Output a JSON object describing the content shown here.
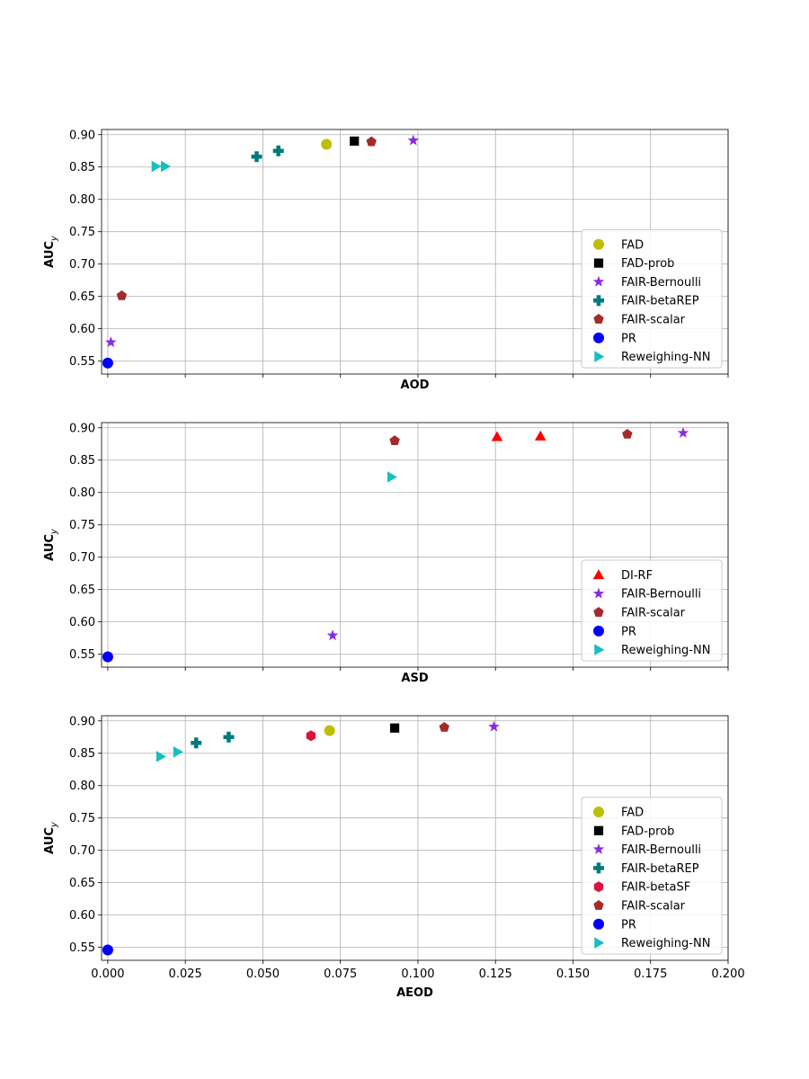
{
  "colors": {
    "FAD": "#bfbf00",
    "FAD-prob": "#000000",
    "FAIR-Bernoulli": "#8a2be2",
    "FAIR-betaREP": "#007b7b",
    "FAIR-betaSF": "#dc143c",
    "FAIR-scalar": "#a52a2a",
    "PR": "#0000ff",
    "Reweighing-NN": "#17bfbf",
    "DI-RF": "#ff0000"
  },
  "markers": {
    "FAD": "circle",
    "FAD-prob": "square",
    "FAIR-Bernoulli": "star",
    "FAIR-betaREP": "plus",
    "FAIR-betaSF": "hexagon",
    "FAIR-scalar": "pentagon",
    "PR": "circle",
    "Reweighing-NN": "triangle-right",
    "DI-RF": "triangle-up"
  },
  "chart_data": [
    {
      "type": "scatter",
      "xlabel": "AOD",
      "ylabel_main": "AUC",
      "ylabel_sub": "y",
      "xlim": [
        -0.002,
        0.2
      ],
      "ylim": [
        0.53,
        0.908
      ],
      "xticks": [
        0.0,
        0.025,
        0.05,
        0.075,
        0.1,
        0.125,
        0.15,
        0.175,
        0.2
      ],
      "xtick_labels_shown": false,
      "yticks": [
        "0.55",
        "0.60",
        "0.65",
        "0.70",
        "0.75",
        "0.80",
        "0.85",
        "0.90"
      ],
      "grid": true,
      "legend_position": "lower-right",
      "series": [
        {
          "name": "FAD",
          "points": [
            [
              0.0705,
              0.885
            ]
          ]
        },
        {
          "name": "FAD-prob",
          "points": [
            [
              0.0795,
              0.89
            ]
          ]
        },
        {
          "name": "FAIR-Bernoulli",
          "points": [
            [
              0.0985,
              0.891
            ],
            [
              0.001,
              0.579
            ]
          ]
        },
        {
          "name": "FAIR-betaREP",
          "points": [
            [
              0.048,
              0.866
            ],
            [
              0.055,
              0.875
            ]
          ]
        },
        {
          "name": "FAIR-scalar",
          "points": [
            [
              0.085,
              0.889
            ],
            [
              0.0045,
              0.651
            ]
          ]
        },
        {
          "name": "PR",
          "points": [
            [
              0.0,
              0.547
            ]
          ]
        },
        {
          "name": "Reweighing-NN",
          "points": [
            [
              0.0155,
              0.851
            ],
            [
              0.0185,
              0.851
            ]
          ]
        }
      ]
    },
    {
      "type": "scatter",
      "xlabel": "ASD",
      "ylabel_main": "AUC",
      "ylabel_sub": "y",
      "xlim": [
        -0.002,
        0.2
      ],
      "ylim": [
        0.53,
        0.908
      ],
      "xticks": [
        0.0,
        0.025,
        0.05,
        0.075,
        0.1,
        0.125,
        0.15,
        0.175,
        0.2
      ],
      "xtick_labels_shown": false,
      "yticks": [
        "0.55",
        "0.60",
        "0.65",
        "0.70",
        "0.75",
        "0.80",
        "0.85",
        "0.90"
      ],
      "grid": true,
      "legend_position": "lower-right",
      "series": [
        {
          "name": "DI-RF",
          "points": [
            [
              0.1255,
              0.886
            ],
            [
              0.1395,
              0.887
            ]
          ]
        },
        {
          "name": "FAIR-Bernoulli",
          "points": [
            [
              0.1855,
              0.892
            ],
            [
              0.0725,
              0.579
            ]
          ]
        },
        {
          "name": "FAIR-scalar",
          "points": [
            [
              0.1675,
              0.89
            ],
            [
              0.0925,
              0.88
            ]
          ]
        },
        {
          "name": "PR",
          "points": [
            [
              0.0,
              0.546
            ]
          ]
        },
        {
          "name": "Reweighing-NN",
          "points": [
            [
              0.0915,
              0.824
            ]
          ]
        }
      ]
    },
    {
      "type": "scatter",
      "xlabel": "AEOD",
      "ylabel_main": "AUC",
      "ylabel_sub": "y",
      "xlim": [
        -0.002,
        0.2
      ],
      "ylim": [
        0.53,
        0.908
      ],
      "xticks": [
        0.0,
        0.025,
        0.05,
        0.075,
        0.1,
        0.125,
        0.15,
        0.175,
        0.2
      ],
      "xtick_labels_shown": true,
      "xtick_labels": [
        "0.000",
        "0.025",
        "0.050",
        "0.075",
        "0.100",
        "0.125",
        "0.150",
        "0.175",
        "0.200"
      ],
      "yticks": [
        "0.55",
        "0.60",
        "0.65",
        "0.70",
        "0.75",
        "0.80",
        "0.85",
        "0.90"
      ],
      "grid": true,
      "legend_position": "lower-right",
      "series": [
        {
          "name": "FAD",
          "points": [
            [
              0.0715,
              0.885
            ]
          ]
        },
        {
          "name": "FAD-prob",
          "points": [
            [
              0.0925,
              0.889
            ]
          ]
        },
        {
          "name": "FAIR-Bernoulli",
          "points": [
            [
              0.1245,
              0.891
            ]
          ]
        },
        {
          "name": "FAIR-betaREP",
          "points": [
            [
              0.0285,
              0.866
            ],
            [
              0.039,
              0.875
            ]
          ]
        },
        {
          "name": "FAIR-betaSF",
          "points": [
            [
              0.0655,
              0.877
            ]
          ]
        },
        {
          "name": "FAIR-scalar",
          "points": [
            [
              0.1085,
              0.89
            ]
          ]
        },
        {
          "name": "PR",
          "points": [
            [
              0.0,
              0.546
            ]
          ]
        },
        {
          "name": "Reweighing-NN",
          "points": [
            [
              0.017,
              0.845
            ],
            [
              0.0225,
              0.852
            ]
          ]
        }
      ]
    }
  ]
}
